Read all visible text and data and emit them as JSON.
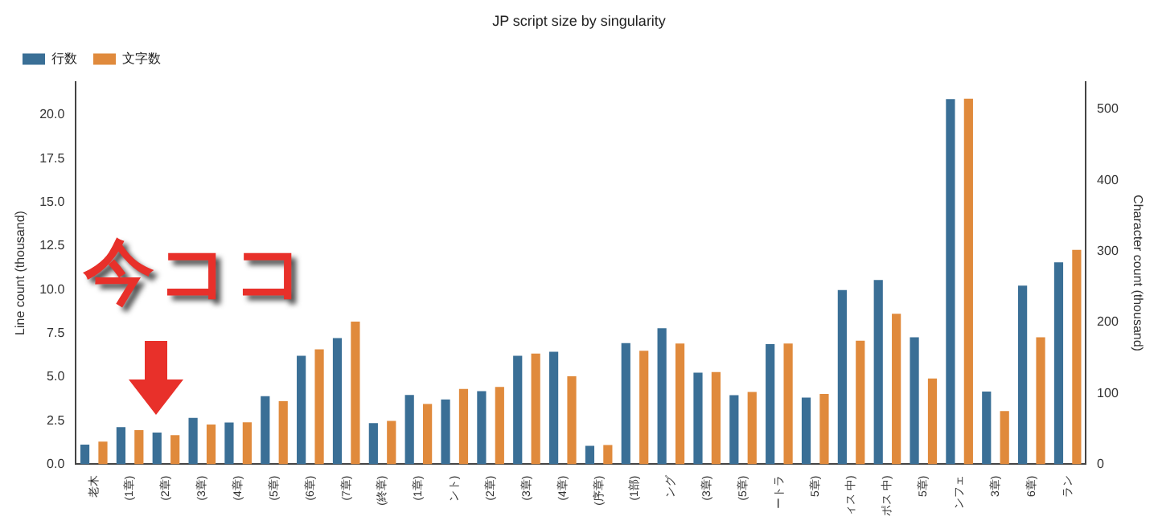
{
  "chart_data": {
    "type": "bar",
    "title": "JP script size by singularity",
    "ylabel": "Line count (thousand)",
    "y2label": "Character count (thousand)",
    "categories": [
      "老木",
      "(1章)",
      "(2章)",
      "(3章)",
      "(4章)",
      "(5章)",
      "(6章)",
      "(7章)",
      "(終章)",
      "(1章)",
      "ント)",
      "(2章)",
      "(3章)",
      "(4章)",
      "(序章)",
      "(1部)",
      "ング",
      "(3章)",
      "(5章)",
      "ートラ",
      "5章)",
      "ィス 中)",
      "ポス 中)",
      "5章)",
      "ンフェ",
      "3章)",
      "6章)",
      "ラン"
    ],
    "series": [
      {
        "name": "行数",
        "color": "#3a6f96",
        "values": [
          1.12,
          2.13,
          1.82,
          2.65,
          2.39,
          3.9,
          6.21,
          7.22,
          2.36,
          3.97,
          3.71,
          4.18,
          6.21,
          6.44,
          1.06,
          6.94,
          7.79,
          5.25,
          3.95,
          6.88,
          3.82,
          9.97,
          10.55,
          7.27,
          20.9,
          4.16,
          10.23,
          11.56
        ]
      },
      {
        "name": "文字数",
        "color": "#e08a3c",
        "axis": "y2",
        "values": [
          32,
          48,
          41,
          56,
          59,
          89,
          162,
          201,
          61,
          85,
          106,
          109,
          156,
          124,
          27,
          160,
          170,
          130,
          102,
          170,
          99,
          174,
          212,
          121,
          515,
          75,
          179,
          302
        ]
      }
    ],
    "ylim": [
      0,
      21.9
    ],
    "yticks": [
      {
        "value": 0,
        "label": "0.0"
      },
      {
        "value": 2.5,
        "label": "2.5"
      },
      {
        "value": 5,
        "label": "5.0"
      },
      {
        "value": 7.5,
        "label": "7.5"
      },
      {
        "value": 10,
        "label": "10.0"
      },
      {
        "value": 12.5,
        "label": "12.5"
      },
      {
        "value": 15,
        "label": "15.0"
      },
      {
        "value": 17.5,
        "label": "17.5"
      },
      {
        "value": 20,
        "label": "20.0"
      }
    ],
    "y2lim": [
      0,
      539
    ],
    "y2ticks": [
      0,
      100,
      200,
      300,
      400,
      500
    ],
    "legend": "top left",
    "grid": false,
    "annotations": [
      "今ココ"
    ]
  }
}
